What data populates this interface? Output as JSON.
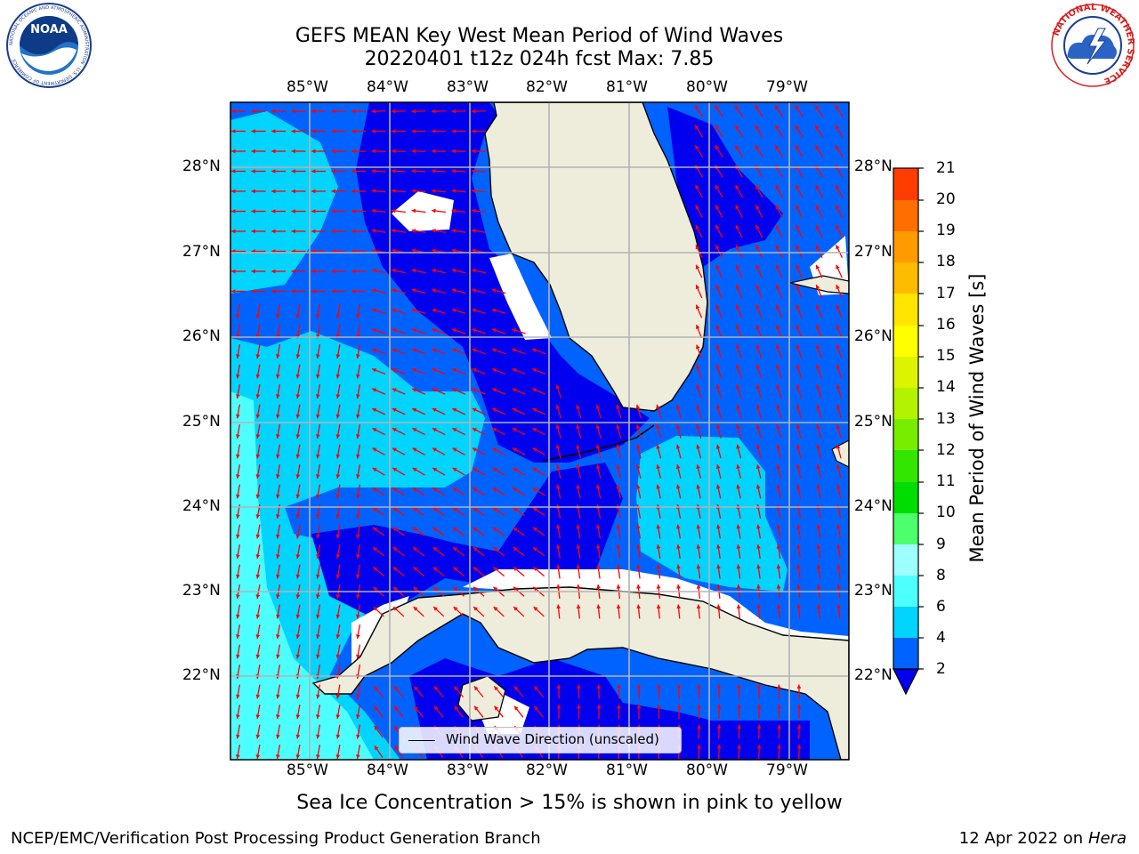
{
  "header": {
    "title_line1": "GEFS MEAN Key West Mean Period of Wind Waves",
    "title_line2": "20220401 t12z 024h fcst   Max: 7.85"
  },
  "logos": {
    "left": {
      "name": "noaa-logo",
      "text": "NOAA",
      "ring_text": "NATIONAL OCEANIC AND ATMOSPHERIC ADMINISTRATION · U.S. DEPARTMENT OF COMMERCE"
    },
    "right": {
      "name": "nws-logo",
      "ring_text": "NATIONAL WEATHER SERVICE"
    }
  },
  "map": {
    "lon_labels": [
      "85°W",
      "84°W",
      "83°W",
      "82°W",
      "81°W",
      "80°W",
      "79°W"
    ],
    "lat_labels": [
      "28°N",
      "27°N",
      "26°N",
      "25°N",
      "24°N",
      "23°N",
      "22°N"
    ],
    "lon_range": [
      -86.0,
      -78.3
    ],
    "lat_range": [
      21.0,
      28.8
    ],
    "grid": true,
    "arrow_color": "#ff0000",
    "land_color": "#eeeddc"
  },
  "legend": {
    "label": "Wind Wave Direction (unscaled)",
    "placement": "bottom-center"
  },
  "colorbar": {
    "title": "Mean Period of Wind Waves [s]",
    "ticks": [
      "2",
      "4",
      "6",
      "8",
      "9",
      "10",
      "11",
      "12",
      "13",
      "14",
      "15",
      "16",
      "17",
      "18",
      "19",
      "20",
      "21"
    ],
    "colors": [
      "#0063ff",
      "#00d4ff",
      "#4dffff",
      "#9effff",
      "#4cff6b",
      "#00dd00",
      "#33e600",
      "#77ee00",
      "#b3f200",
      "#ddf400",
      "#ffff00",
      "#ffe500",
      "#ffbb00",
      "#ff9a00",
      "#ff6e00",
      "#ff3d00",
      "#ff0000"
    ]
  },
  "chart_data": {
    "type": "heatmap",
    "variable": "Mean Period of Wind Waves",
    "units": "s",
    "max": 7.85,
    "bins_seen": [
      {
        "range": [
          2,
          4
        ],
        "color": "#0063ff",
        "area": "most open water, Atlantic, Straits of Florida"
      },
      {
        "range": [
          4,
          6
        ],
        "color": "#00d4ff",
        "area": "west Gulf, south of Keys"
      },
      {
        "range": [
          6,
          8
        ],
        "color": "#4dffff",
        "area": "far southwest Gulf"
      },
      {
        "range": [
          0,
          2
        ],
        "color": "#0000ee",
        "area": "nearshore west Florida shelf, north Cuba coast"
      }
    ]
  },
  "footer": {
    "note": "Sea Ice Concentration > 15% is shown in pink to yellow",
    "credit_left": "NCEP/EMC/Verification Post Processing Product Generation Branch",
    "credit_date": "12 Apr 2022 on ",
    "credit_host": "Hera"
  }
}
